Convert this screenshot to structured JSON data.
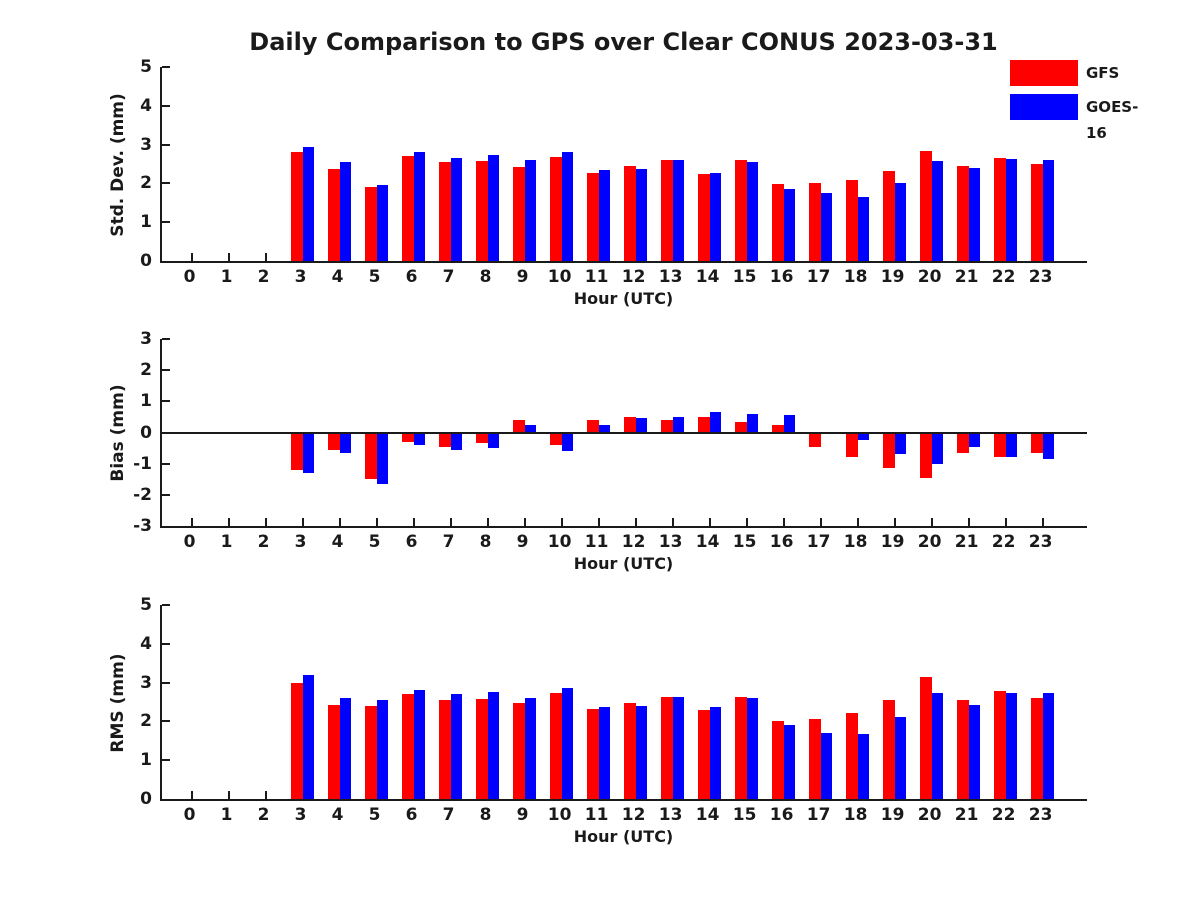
{
  "title": "Daily Comparison to GPS over Clear CONUS 2023-03-31",
  "colors": {
    "gfs": "#ff0000",
    "goes16": "#0000ff",
    "axis": "#1a1a1a",
    "background": "#ffffff"
  },
  "legend": {
    "entries": [
      {
        "label": "GFS",
        "color": "#ff0000"
      },
      {
        "label": "GOES-16",
        "color": "#0000ff"
      }
    ]
  },
  "chart_data": [
    {
      "type": "bar",
      "ylabel": "Std. Dev. (mm)",
      "xlabel": "Hour (UTC)",
      "ylim": [
        0,
        5
      ],
      "yticks": [
        0,
        1,
        2,
        3,
        4,
        5
      ],
      "grid": false,
      "legend_position": "top-right",
      "categories": [
        0,
        1,
        2,
        3,
        4,
        5,
        6,
        7,
        8,
        9,
        10,
        11,
        12,
        13,
        14,
        15,
        16,
        17,
        18,
        19,
        20,
        21,
        22,
        23
      ],
      "series": [
        {
          "name": "GFS",
          "color": "#ff0000",
          "values": [
            null,
            null,
            null,
            2.8,
            2.37,
            1.9,
            2.7,
            2.55,
            2.57,
            2.43,
            2.68,
            2.28,
            2.44,
            2.6,
            2.24,
            2.6,
            1.98,
            2.0,
            2.08,
            2.32,
            2.84,
            2.45,
            2.65,
            2.5
          ]
        },
        {
          "name": "GOES-16",
          "color": "#0000ff",
          "values": [
            null,
            null,
            null,
            2.95,
            2.55,
            1.97,
            2.8,
            2.65,
            2.72,
            2.6,
            2.82,
            2.35,
            2.36,
            2.6,
            2.27,
            2.55,
            1.85,
            1.75,
            1.65,
            2.02,
            2.58,
            2.4,
            2.62,
            2.6
          ]
        }
      ]
    },
    {
      "type": "bar",
      "ylabel": "Bias (mm)",
      "xlabel": "Hour (UTC)",
      "ylim": [
        -3,
        3
      ],
      "yticks": [
        -3,
        -2,
        -1,
        0,
        1,
        2,
        3
      ],
      "grid": false,
      "zero_line": true,
      "categories": [
        0,
        1,
        2,
        3,
        4,
        5,
        6,
        7,
        8,
        9,
        10,
        11,
        12,
        13,
        14,
        15,
        16,
        17,
        18,
        19,
        20,
        21,
        22,
        23
      ],
      "series": [
        {
          "name": "GFS",
          "color": "#ff0000",
          "values": [
            null,
            null,
            null,
            -1.2,
            -0.55,
            -1.5,
            -0.3,
            -0.45,
            -0.35,
            0.4,
            -0.4,
            0.4,
            0.5,
            0.4,
            0.5,
            0.35,
            0.25,
            -0.45,
            -0.8,
            -1.15,
            -1.45,
            -0.65,
            -0.8,
            -0.65
          ]
        },
        {
          "name": "GOES-16",
          "color": "#0000ff",
          "values": [
            null,
            null,
            null,
            -1.3,
            -0.65,
            -1.65,
            -0.4,
            -0.55,
            -0.5,
            0.25,
            -0.6,
            0.25,
            0.45,
            0.5,
            0.65,
            0.6,
            0.55,
            0.0,
            -0.25,
            -0.7,
            -1.0,
            -0.45,
            -0.78,
            -0.85
          ]
        }
      ]
    },
    {
      "type": "bar",
      "ylabel": "RMS (mm)",
      "xlabel": "Hour (UTC)",
      "ylim": [
        0,
        5
      ],
      "yticks": [
        0,
        1,
        2,
        3,
        4,
        5
      ],
      "grid": false,
      "categories": [
        0,
        1,
        2,
        3,
        4,
        5,
        6,
        7,
        8,
        9,
        10,
        11,
        12,
        13,
        14,
        15,
        16,
        17,
        18,
        19,
        20,
        21,
        22,
        23
      ],
      "series": [
        {
          "name": "GFS",
          "color": "#ff0000",
          "values": [
            null,
            null,
            null,
            3.0,
            2.42,
            2.4,
            2.7,
            2.55,
            2.58,
            2.47,
            2.72,
            2.32,
            2.47,
            2.62,
            2.3,
            2.64,
            2.0,
            2.05,
            2.22,
            2.55,
            3.15,
            2.55,
            2.79,
            2.6
          ]
        },
        {
          "name": "GOES-16",
          "color": "#0000ff",
          "values": [
            null,
            null,
            null,
            3.2,
            2.6,
            2.55,
            2.8,
            2.7,
            2.75,
            2.6,
            2.85,
            2.38,
            2.4,
            2.62,
            2.36,
            2.6,
            1.9,
            1.7,
            1.67,
            2.12,
            2.74,
            2.43,
            2.74,
            2.74
          ]
        }
      ]
    }
  ]
}
